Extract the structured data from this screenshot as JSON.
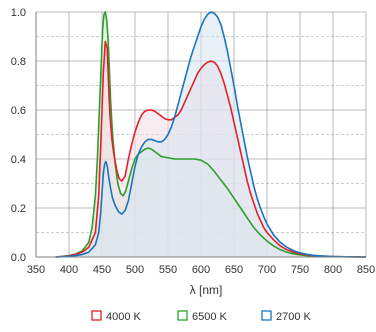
{
  "chart_data": {
    "type": "area",
    "title": "",
    "xlabel": "λ [nm]",
    "ylabel": "",
    "xlim": [
      350,
      850
    ],
    "ylim": [
      0,
      1.0
    ],
    "xticks": [
      350,
      400,
      450,
      500,
      550,
      600,
      650,
      700,
      750,
      800,
      850
    ],
    "yticks": [
      0,
      0.2,
      0.4,
      0.6,
      0.8,
      1.0
    ],
    "xtick_labels": [
      "350",
      "400",
      "450",
      "500",
      "550",
      "600",
      "650",
      "700",
      "750",
      "800",
      "850"
    ],
    "ytick_labels": [
      "0.0",
      "0.2",
      "0.4",
      "0.6",
      "0.8",
      "1.0"
    ],
    "grid": {
      "vertical": "solid",
      "horizontal_major": "solid",
      "horizontal_minor": "dashed"
    },
    "legend_position": "bottom",
    "series": [
      {
        "name": "4000 K",
        "color": "#e32028",
        "fill": "#f2dde3",
        "points": [
          [
            380,
            0
          ],
          [
            390,
            0.002
          ],
          [
            400,
            0.005
          ],
          [
            410,
            0.01
          ],
          [
            420,
            0.02
          ],
          [
            430,
            0.04
          ],
          [
            440,
            0.1
          ],
          [
            445,
            0.25
          ],
          [
            448,
            0.45
          ],
          [
            450,
            0.6
          ],
          [
            452,
            0.75
          ],
          [
            455,
            0.88
          ],
          [
            458,
            0.85
          ],
          [
            460,
            0.7
          ],
          [
            462,
            0.58
          ],
          [
            465,
            0.48
          ],
          [
            468,
            0.42
          ],
          [
            472,
            0.36
          ],
          [
            476,
            0.32
          ],
          [
            480,
            0.31
          ],
          [
            485,
            0.33
          ],
          [
            490,
            0.4
          ],
          [
            495,
            0.46
          ],
          [
            500,
            0.51
          ],
          [
            505,
            0.55
          ],
          [
            510,
            0.58
          ],
          [
            515,
            0.595
          ],
          [
            520,
            0.6
          ],
          [
            525,
            0.6
          ],
          [
            530,
            0.595
          ],
          [
            535,
            0.585
          ],
          [
            540,
            0.575
          ],
          [
            545,
            0.565
          ],
          [
            550,
            0.56
          ],
          [
            555,
            0.56
          ],
          [
            560,
            0.57
          ],
          [
            565,
            0.58
          ],
          [
            570,
            0.6
          ],
          [
            575,
            0.63
          ],
          [
            580,
            0.66
          ],
          [
            585,
            0.69
          ],
          [
            590,
            0.72
          ],
          [
            595,
            0.75
          ],
          [
            600,
            0.77
          ],
          [
            605,
            0.785
          ],
          [
            610,
            0.795
          ],
          [
            615,
            0.8
          ],
          [
            620,
            0.795
          ],
          [
            625,
            0.78
          ],
          [
            630,
            0.75
          ],
          [
            635,
            0.71
          ],
          [
            640,
            0.66
          ],
          [
            645,
            0.61
          ],
          [
            650,
            0.55
          ],
          [
            655,
            0.49
          ],
          [
            660,
            0.43
          ],
          [
            665,
            0.37
          ],
          [
            670,
            0.31
          ],
          [
            675,
            0.26
          ],
          [
            680,
            0.22
          ],
          [
            685,
            0.18
          ],
          [
            690,
            0.15
          ],
          [
            695,
            0.12
          ],
          [
            700,
            0.1
          ],
          [
            710,
            0.07
          ],
          [
            720,
            0.045
          ],
          [
            730,
            0.03
          ],
          [
            740,
            0.02
          ],
          [
            750,
            0.013
          ],
          [
            760,
            0.009
          ],
          [
            770,
            0.006
          ],
          [
            780,
            0.004
          ],
          [
            800,
            0.002
          ],
          [
            820,
            0.001
          ],
          [
            850,
            0
          ]
        ]
      },
      {
        "name": "6500 K",
        "color": "#2aa02a",
        "fill": "#d5e8d5",
        "points": [
          [
            380,
            0
          ],
          [
            390,
            0.003
          ],
          [
            400,
            0.006
          ],
          [
            410,
            0.012
          ],
          [
            420,
            0.025
          ],
          [
            430,
            0.06
          ],
          [
            435,
            0.12
          ],
          [
            440,
            0.25
          ],
          [
            443,
            0.4
          ],
          [
            446,
            0.6
          ],
          [
            449,
            0.8
          ],
          [
            451,
            0.93
          ],
          [
            453,
            0.99
          ],
          [
            455,
            1.0
          ],
          [
            457,
            0.97
          ],
          [
            459,
            0.9
          ],
          [
            461,
            0.78
          ],
          [
            463,
            0.64
          ],
          [
            466,
            0.5
          ],
          [
            470,
            0.38
          ],
          [
            474,
            0.3
          ],
          [
            478,
            0.26
          ],
          [
            482,
            0.25
          ],
          [
            486,
            0.27
          ],
          [
            490,
            0.31
          ],
          [
            495,
            0.36
          ],
          [
            500,
            0.4
          ],
          [
            505,
            0.42
          ],
          [
            510,
            0.43
          ],
          [
            515,
            0.44
          ],
          [
            520,
            0.445
          ],
          [
            525,
            0.44
          ],
          [
            530,
            0.43
          ],
          [
            540,
            0.41
          ],
          [
            550,
            0.405
          ],
          [
            560,
            0.4
          ],
          [
            570,
            0.4
          ],
          [
            580,
            0.4
          ],
          [
            590,
            0.4
          ],
          [
            600,
            0.395
          ],
          [
            610,
            0.38
          ],
          [
            620,
            0.35
          ],
          [
            630,
            0.315
          ],
          [
            640,
            0.28
          ],
          [
            650,
            0.24
          ],
          [
            660,
            0.2
          ],
          [
            670,
            0.16
          ],
          [
            680,
            0.12
          ],
          [
            690,
            0.09
          ],
          [
            700,
            0.065
          ],
          [
            710,
            0.045
          ],
          [
            720,
            0.03
          ],
          [
            730,
            0.02
          ],
          [
            740,
            0.013
          ],
          [
            750,
            0.009
          ],
          [
            760,
            0.006
          ],
          [
            780,
            0.003
          ],
          [
            800,
            0.001
          ],
          [
            850,
            0
          ]
        ]
      },
      {
        "name": "2700 K",
        "color": "#1b75bc",
        "fill": "#d6e6f3",
        "points": [
          [
            380,
            0
          ],
          [
            390,
            0.001
          ],
          [
            400,
            0.003
          ],
          [
            410,
            0.006
          ],
          [
            420,
            0.01
          ],
          [
            430,
            0.02
          ],
          [
            440,
            0.05
          ],
          [
            445,
            0.1
          ],
          [
            448,
            0.18
          ],
          [
            450,
            0.26
          ],
          [
            452,
            0.34
          ],
          [
            454,
            0.38
          ],
          [
            456,
            0.39
          ],
          [
            458,
            0.37
          ],
          [
            460,
            0.33
          ],
          [
            463,
            0.28
          ],
          [
            466,
            0.24
          ],
          [
            470,
            0.21
          ],
          [
            475,
            0.185
          ],
          [
            480,
            0.175
          ],
          [
            485,
            0.19
          ],
          [
            490,
            0.23
          ],
          [
            495,
            0.3
          ],
          [
            500,
            0.37
          ],
          [
            505,
            0.42
          ],
          [
            510,
            0.45
          ],
          [
            515,
            0.47
          ],
          [
            520,
            0.48
          ],
          [
            525,
            0.48
          ],
          [
            530,
            0.475
          ],
          [
            535,
            0.47
          ],
          [
            540,
            0.47
          ],
          [
            545,
            0.48
          ],
          [
            550,
            0.5
          ],
          [
            555,
            0.53
          ],
          [
            560,
            0.57
          ],
          [
            565,
            0.62
          ],
          [
            570,
            0.67
          ],
          [
            575,
            0.72
          ],
          [
            580,
            0.77
          ],
          [
            585,
            0.82
          ],
          [
            590,
            0.86
          ],
          [
            595,
            0.9
          ],
          [
            600,
            0.94
          ],
          [
            605,
            0.97
          ],
          [
            610,
            0.99
          ],
          [
            615,
            1.0
          ],
          [
            620,
            0.995
          ],
          [
            625,
            0.98
          ],
          [
            630,
            0.95
          ],
          [
            635,
            0.9
          ],
          [
            640,
            0.84
          ],
          [
            645,
            0.77
          ],
          [
            650,
            0.7
          ],
          [
            655,
            0.62
          ],
          [
            660,
            0.55
          ],
          [
            665,
            0.48
          ],
          [
            670,
            0.41
          ],
          [
            675,
            0.35
          ],
          [
            680,
            0.29
          ],
          [
            685,
            0.24
          ],
          [
            690,
            0.2
          ],
          [
            695,
            0.165
          ],
          [
            700,
            0.135
          ],
          [
            710,
            0.09
          ],
          [
            720,
            0.06
          ],
          [
            730,
            0.04
          ],
          [
            740,
            0.026
          ],
          [
            750,
            0.017
          ],
          [
            760,
            0.011
          ],
          [
            770,
            0.007
          ],
          [
            780,
            0.005
          ],
          [
            800,
            0.002
          ],
          [
            820,
            0.001
          ],
          [
            850,
            0
          ]
        ]
      }
    ],
    "legend_order": [
      0,
      1,
      2
    ]
  }
}
